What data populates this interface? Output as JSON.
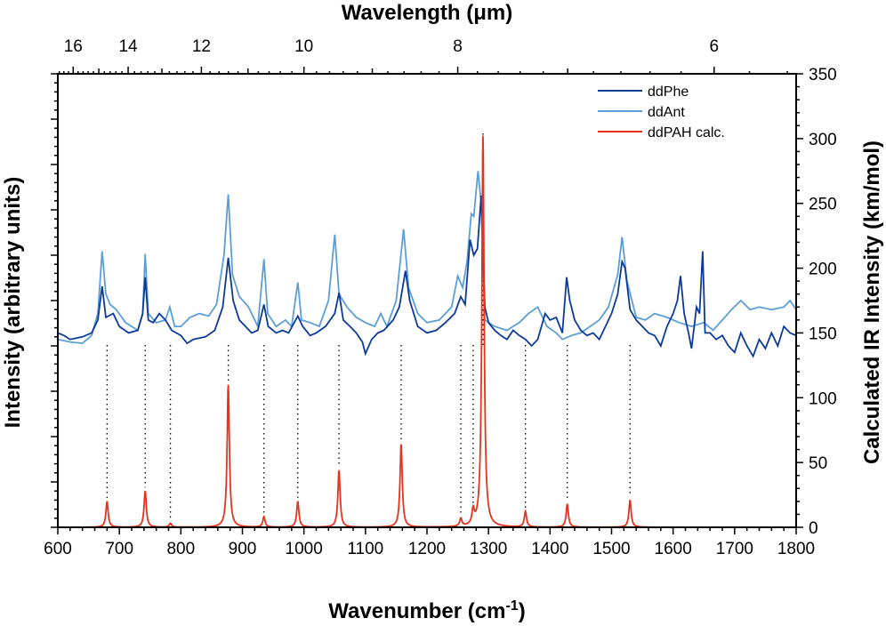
{
  "chart_data": {
    "type": "line",
    "xlabel": "Wavenumber (cm-1)",
    "xlabel_base": "Wavenumber (cm",
    "xlabel_sup": "-1",
    "xlabel_end": ")",
    "top_xlabel": "Wavelength (μm)",
    "ylabel_left": "Intensity (arbitrary units)",
    "ylabel_right": "Calculated IR Intensity (km/mol)",
    "xlim": [
      600,
      1800
    ],
    "ylim_right": [
      0,
      350
    ],
    "grid": false,
    "legend_position": "top-right",
    "x_ticks": [
      600,
      700,
      800,
      900,
      1000,
      1100,
      1200,
      1300,
      1400,
      1500,
      1600,
      1700,
      1800
    ],
    "y_right_ticks": [
      0,
      50,
      100,
      150,
      200,
      250,
      300,
      350
    ],
    "top_ticks_um": [
      16,
      14,
      12,
      10,
      8,
      6
    ],
    "series": [
      {
        "name": "ddPhe",
        "color": "#0d3a9a",
        "axis": "left (arbitrary, shown on right-axis scale)",
        "points": [
          [
            600,
            150
          ],
          [
            610,
            148
          ],
          [
            620,
            145
          ],
          [
            640,
            147
          ],
          [
            655,
            150
          ],
          [
            665,
            160
          ],
          [
            672,
            186
          ],
          [
            678,
            162
          ],
          [
            690,
            165
          ],
          [
            700,
            155
          ],
          [
            715,
            150
          ],
          [
            730,
            152
          ],
          [
            738,
            165
          ],
          [
            742,
            193
          ],
          [
            747,
            160
          ],
          [
            755,
            158
          ],
          [
            765,
            165
          ],
          [
            775,
            160
          ],
          [
            785,
            152
          ],
          [
            800,
            148
          ],
          [
            810,
            142
          ],
          [
            820,
            145
          ],
          [
            840,
            147
          ],
          [
            855,
            152
          ],
          [
            868,
            170
          ],
          [
            877,
            208
          ],
          [
            885,
            175
          ],
          [
            895,
            160
          ],
          [
            905,
            155
          ],
          [
            915,
            150
          ],
          [
            925,
            152
          ],
          [
            935,
            172
          ],
          [
            942,
            155
          ],
          [
            955,
            150
          ],
          [
            965,
            152
          ],
          [
            975,
            150
          ],
          [
            990,
            163
          ],
          [
            998,
            155
          ],
          [
            1010,
            148
          ],
          [
            1020,
            150
          ],
          [
            1035,
            155
          ],
          [
            1050,
            165
          ],
          [
            1057,
            181
          ],
          [
            1064,
            160
          ],
          [
            1075,
            155
          ],
          [
            1085,
            150
          ],
          [
            1095,
            143
          ],
          [
            1100,
            134
          ],
          [
            1110,
            145
          ],
          [
            1120,
            150
          ],
          [
            1130,
            152
          ],
          [
            1145,
            160
          ],
          [
            1155,
            170
          ],
          [
            1165,
            198
          ],
          [
            1172,
            175
          ],
          [
            1185,
            155
          ],
          [
            1200,
            150
          ],
          [
            1215,
            152
          ],
          [
            1230,
            158
          ],
          [
            1245,
            165
          ],
          [
            1255,
            178
          ],
          [
            1262,
            172
          ],
          [
            1270,
            222
          ],
          [
            1276,
            210
          ],
          [
            1282,
            215
          ],
          [
            1288,
            256
          ],
          [
            1294,
            170
          ],
          [
            1300,
            158
          ],
          [
            1310,
            152
          ],
          [
            1320,
            148
          ],
          [
            1330,
            145
          ],
          [
            1340,
            152
          ],
          [
            1350,
            148
          ],
          [
            1360,
            145
          ],
          [
            1370,
            140
          ],
          [
            1380,
            145
          ],
          [
            1392,
            165
          ],
          [
            1400,
            160
          ],
          [
            1410,
            162
          ],
          [
            1420,
            150
          ],
          [
            1427,
            193
          ],
          [
            1432,
            175
          ],
          [
            1440,
            160
          ],
          [
            1450,
            152
          ],
          [
            1460,
            148
          ],
          [
            1470,
            150
          ],
          [
            1480,
            145
          ],
          [
            1490,
            155
          ],
          [
            1500,
            165
          ],
          [
            1510,
            180
          ],
          [
            1517,
            205
          ],
          [
            1522,
            200
          ],
          [
            1530,
            168
          ],
          [
            1540,
            160
          ],
          [
            1550,
            155
          ],
          [
            1560,
            150
          ],
          [
            1570,
            148
          ],
          [
            1580,
            140
          ],
          [
            1590,
            155
          ],
          [
            1600,
            165
          ],
          [
            1607,
            175
          ],
          [
            1612,
            194
          ],
          [
            1618,
            165
          ],
          [
            1625,
            150
          ],
          [
            1630,
            138
          ],
          [
            1638,
            170
          ],
          [
            1643,
            165
          ],
          [
            1648,
            213
          ],
          [
            1652,
            150
          ],
          [
            1660,
            150
          ],
          [
            1670,
            145
          ],
          [
            1680,
            148
          ],
          [
            1690,
            140
          ],
          [
            1700,
            135
          ],
          [
            1710,
            150
          ],
          [
            1720,
            140
          ],
          [
            1730,
            132
          ],
          [
            1740,
            145
          ],
          [
            1750,
            138
          ],
          [
            1760,
            150
          ],
          [
            1770,
            140
          ],
          [
            1780,
            155
          ],
          [
            1790,
            150
          ],
          [
            1800,
            148
          ]
        ]
      },
      {
        "name": "ddAnt",
        "color": "#5b9fd6",
        "axis": "left (arbitrary, shown on right-axis scale)",
        "points": [
          [
            600,
            145
          ],
          [
            620,
            143
          ],
          [
            640,
            142
          ],
          [
            655,
            148
          ],
          [
            665,
            165
          ],
          [
            672,
            213
          ],
          [
            678,
            180
          ],
          [
            685,
            172
          ],
          [
            695,
            168
          ],
          [
            710,
            158
          ],
          [
            730,
            152
          ],
          [
            738,
            165
          ],
          [
            742,
            211
          ],
          [
            747,
            165
          ],
          [
            760,
            158
          ],
          [
            775,
            160
          ],
          [
            782,
            170
          ],
          [
            790,
            155
          ],
          [
            800,
            155
          ],
          [
            815,
            162
          ],
          [
            830,
            165
          ],
          [
            845,
            163
          ],
          [
            858,
            172
          ],
          [
            870,
            210
          ],
          [
            877,
            257
          ],
          [
            884,
            195
          ],
          [
            895,
            178
          ],
          [
            910,
            170
          ],
          [
            925,
            155
          ],
          [
            935,
            207
          ],
          [
            941,
            165
          ],
          [
            955,
            155
          ],
          [
            970,
            160
          ],
          [
            980,
            155
          ],
          [
            990,
            189
          ],
          [
            996,
            160
          ],
          [
            1010,
            158
          ],
          [
            1025,
            155
          ],
          [
            1040,
            175
          ],
          [
            1050,
            226
          ],
          [
            1057,
            180
          ],
          [
            1070,
            170
          ],
          [
            1085,
            162
          ],
          [
            1100,
            158
          ],
          [
            1115,
            155
          ],
          [
            1125,
            165
          ],
          [
            1135,
            155
          ],
          [
            1150,
            175
          ],
          [
            1162,
            230
          ],
          [
            1170,
            185
          ],
          [
            1185,
            165
          ],
          [
            1200,
            158
          ],
          [
            1220,
            160
          ],
          [
            1240,
            170
          ],
          [
            1250,
            194
          ],
          [
            1258,
            185
          ],
          [
            1265,
            205
          ],
          [
            1272,
            242
          ],
          [
            1276,
            240
          ],
          [
            1283,
            275
          ],
          [
            1288,
            250
          ],
          [
            1294,
            160
          ],
          [
            1310,
            155
          ],
          [
            1330,
            152
          ],
          [
            1350,
            158
          ],
          [
            1365,
            165
          ],
          [
            1380,
            170
          ],
          [
            1395,
            155
          ],
          [
            1410,
            150
          ],
          [
            1420,
            145
          ],
          [
            1435,
            148
          ],
          [
            1450,
            150
          ],
          [
            1465,
            155
          ],
          [
            1480,
            160
          ],
          [
            1495,
            170
          ],
          [
            1510,
            195
          ],
          [
            1517,
            224
          ],
          [
            1525,
            190
          ],
          [
            1540,
            162
          ],
          [
            1555,
            160
          ],
          [
            1570,
            165
          ],
          [
            1590,
            162
          ],
          [
            1610,
            158
          ],
          [
            1630,
            155
          ],
          [
            1650,
            158
          ],
          [
            1665,
            152
          ],
          [
            1680,
            160
          ],
          [
            1695,
            168
          ],
          [
            1710,
            175
          ],
          [
            1725,
            168
          ],
          [
            1740,
            170
          ],
          [
            1760,
            168
          ],
          [
            1780,
            170
          ],
          [
            1790,
            175
          ],
          [
            1800,
            168
          ]
        ]
      },
      {
        "name": "ddPAH calc.",
        "color": "#e8321e",
        "axis": "right",
        "peaks": [
          [
            680,
            20
          ],
          [
            742,
            28
          ],
          [
            783,
            3
          ],
          [
            877,
            110
          ],
          [
            935,
            8
          ],
          [
            990,
            20
          ],
          [
            1057,
            44
          ],
          [
            1158,
            64
          ],
          [
            1255,
            6
          ],
          [
            1275,
            11
          ],
          [
            1291,
            302
          ],
          [
            1360,
            12
          ],
          [
            1428,
            18
          ],
          [
            1530,
            21
          ]
        ]
      }
    ]
  }
}
